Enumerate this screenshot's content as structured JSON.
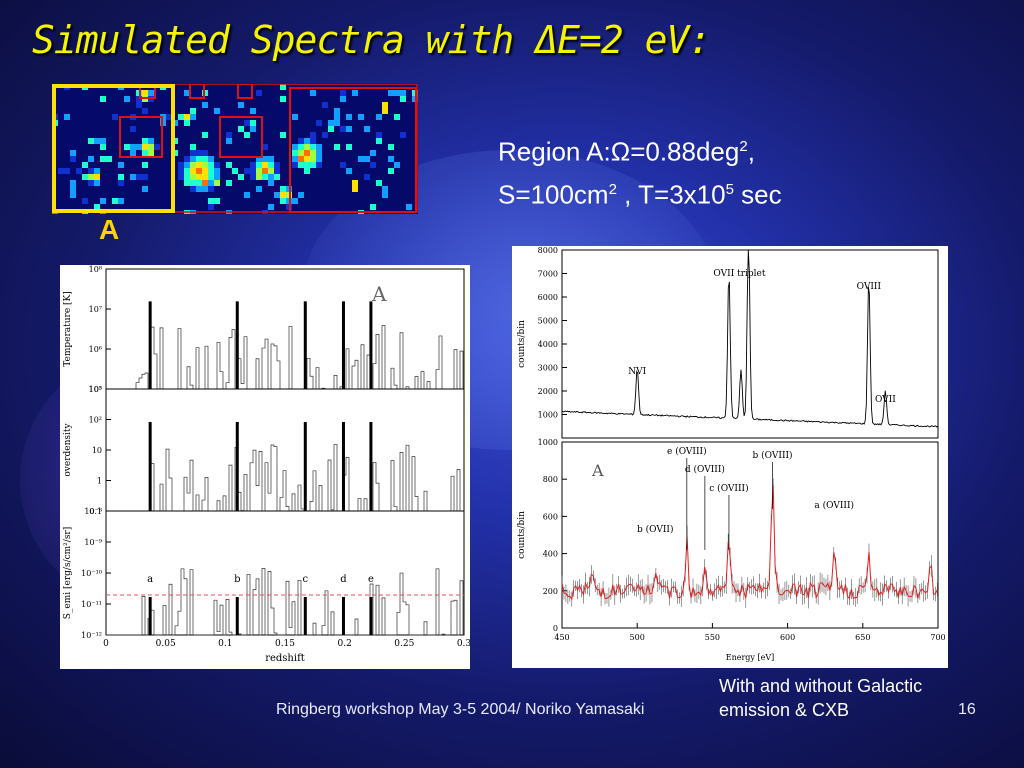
{
  "slide": {
    "title": "Simulated Spectra with ΔE=2 eV:",
    "region_line1_prefix": "Region A:",
    "omega_symbol": "Ω",
    "region_line1_value": "=0.88deg",
    "region_line1_exp": "2",
    "region_line1_suffix": ",",
    "region_line2_a": "S=100cm",
    "region_line2_a_exp": "2",
    "region_line2_b": " , T=3x10",
    "region_line2_b_exp": "5",
    "region_line2_c": " sec",
    "region_label": "A",
    "footer_text": "Ringberg workshop May 3-5 2004/ Noriko Yamasaki",
    "page_number": "16",
    "caption_line1": "With  and without Galactic",
    "caption_line2": "emission & CXB"
  },
  "colors": {
    "title": "#f4f400",
    "region_label": "#ffd200",
    "selection_box": "#ffe000",
    "region_box": "#e01010",
    "model_line": "#e02020"
  },
  "chart_data": [
    {
      "type": "bar",
      "name": "redshift-distribution",
      "panel_letter": "A",
      "xlabel": "redshift",
      "xlim": [
        0,
        0.3
      ],
      "xticks": [
        "0",
        "0.05",
        "0.1",
        "0.15",
        "0.2",
        "0.25",
        "0.3"
      ],
      "panels": [
        {
          "ylabel": "Temperature [K]",
          "yticks": [
            "10⁸",
            "10⁷",
            "10⁶",
            "10⁵"
          ]
        },
        {
          "ylabel": "overdensity",
          "yticks": [
            "10³",
            "10²",
            "10",
            "1",
            "0.1"
          ]
        },
        {
          "ylabel": "S_emi [erg/s/cm²/sr]",
          "yticks": [
            "10⁻⁸",
            "10⁻⁹",
            "10⁻¹⁰",
            "10⁻¹¹",
            "10⁻¹²"
          ]
        }
      ],
      "absorbers": [
        {
          "label": "a",
          "z": 0.037
        },
        {
          "label": "b",
          "z": 0.11
        },
        {
          "label": "c",
          "z": 0.167
        },
        {
          "label": "d",
          "z": 0.199
        },
        {
          "label": "e",
          "z": 0.222
        }
      ]
    },
    {
      "type": "line",
      "name": "simulated-spectrum-total",
      "xlabel": "",
      "ylabel": "counts/bin",
      "xlim": [
        450,
        700
      ],
      "ylim": [
        0,
        8000
      ],
      "yticks": [
        "1000",
        "2000",
        "3000",
        "4000",
        "5000",
        "6000",
        "7000",
        "8000"
      ],
      "annotations": [
        {
          "text": "NVI",
          "energy": 500
        },
        {
          "text": "OVII  triplet",
          "energy": 568
        },
        {
          "text": "OVIII",
          "energy": 654
        },
        {
          "text": "OVII",
          "energy": 665
        }
      ],
      "peaks": [
        {
          "energy": 500,
          "counts": 1950
        },
        {
          "energy": 561,
          "counts": 6200
        },
        {
          "energy": 569,
          "counts": 2100
        },
        {
          "energy": 574,
          "counts": 8000
        },
        {
          "energy": 654,
          "counts": 6200
        },
        {
          "energy": 665,
          "counts": 1450
        }
      ]
    },
    {
      "type": "line",
      "name": "simulated-spectrum-no-galactic",
      "panel_letter": "A",
      "xlabel": "Energy [eV]",
      "ylabel": "counts/bin",
      "xlim": [
        450,
        700
      ],
      "ylim": [
        0,
        1000
      ],
      "xticks": [
        "450",
        "500",
        "550",
        "600",
        "650",
        "700"
      ],
      "yticks": [
        "0",
        "200",
        "400",
        "600",
        "800",
        "1000"
      ],
      "lines": [
        {
          "text": "e (OVIII)",
          "energy": 533
        },
        {
          "text": "d (OVIII)",
          "energy": 545
        },
        {
          "text": "c (OVIII)",
          "energy": 561
        },
        {
          "text": "b (OVIII)",
          "energy": 590
        },
        {
          "text": "b (OVII)",
          "energy": 512
        },
        {
          "text": "a (OVIII)",
          "energy": 631
        }
      ]
    }
  ]
}
